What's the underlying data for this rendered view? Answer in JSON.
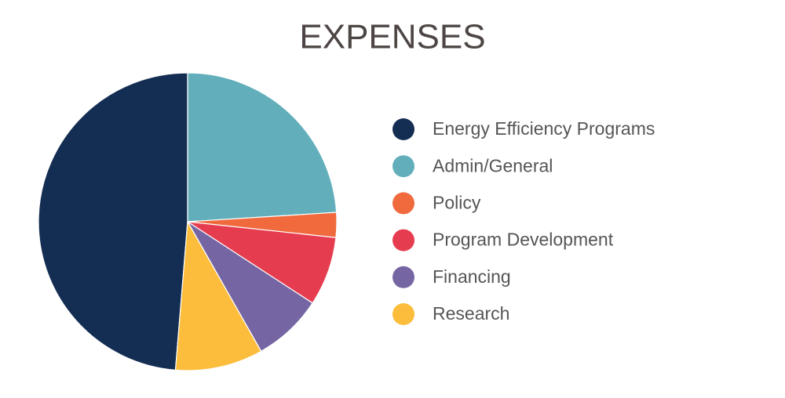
{
  "chart_data": {
    "type": "pie",
    "title": "EXPENSES",
    "categories": [
      "Energy Efficiency Programs",
      "Admin/General",
      "Policy",
      "Program Development",
      "Financing",
      "Research"
    ],
    "values": [
      48.7,
      24,
      2.7,
      7.5,
      7.6,
      9.5
    ],
    "colors": [
      "#142d52",
      "#62afbb",
      "#f06a3e",
      "#e63c50",
      "#7566a3",
      "#fbbd3b"
    ],
    "legend": "right"
  }
}
